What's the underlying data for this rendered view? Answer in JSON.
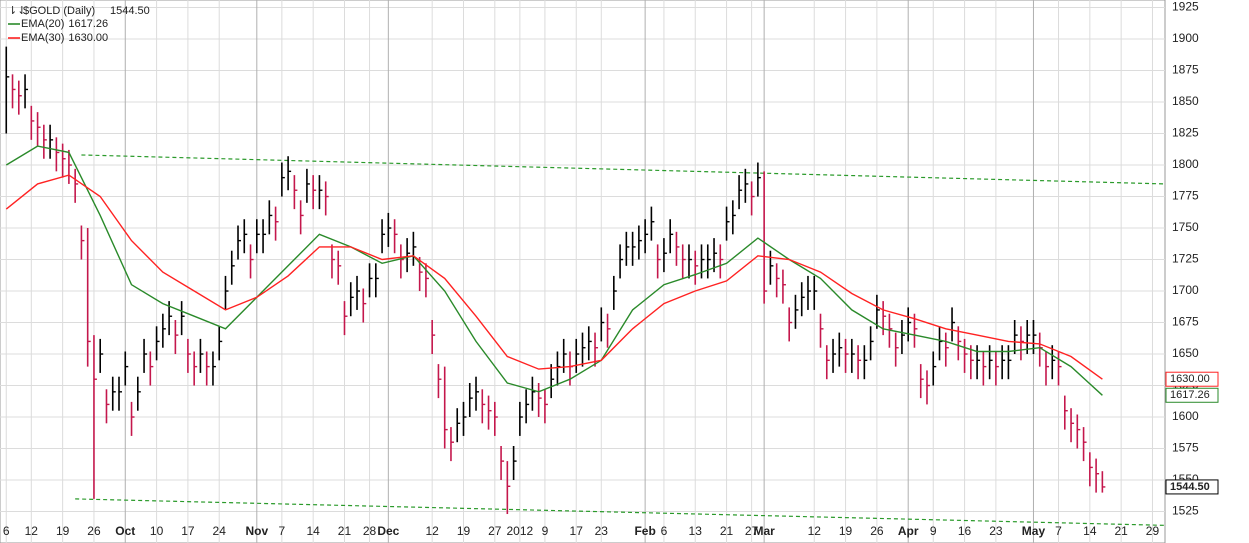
{
  "chart_data": {
    "type": "hlc",
    "title": "$GOLD (Daily)",
    "price_label": "1544.50",
    "up_color": "#000000",
    "down_color": "#c4174c",
    "xlim": [
      -1,
      185
    ],
    "xticks": [
      {
        "value": 0,
        "label": "6"
      },
      {
        "value": 4,
        "label": "12"
      },
      {
        "value": 9,
        "label": "19"
      },
      {
        "value": 14,
        "label": "26"
      },
      {
        "value": 19,
        "label": "Oct"
      },
      {
        "value": 24,
        "label": "10"
      },
      {
        "value": 29,
        "label": "17"
      },
      {
        "value": 34,
        "label": "24"
      },
      {
        "value": 40,
        "label": "Nov"
      },
      {
        "value": 44,
        "label": "7"
      },
      {
        "value": 49,
        "label": "14"
      },
      {
        "value": 54,
        "label": "21"
      },
      {
        "value": 58,
        "label": "28"
      },
      {
        "value": 61,
        "label": "Dec"
      },
      {
        "value": 68,
        "label": "12"
      },
      {
        "value": 73,
        "label": "19"
      },
      {
        "value": 78,
        "label": "27"
      },
      {
        "value": 82,
        "label": "2012"
      },
      {
        "value": 86,
        "label": "9"
      },
      {
        "value": 91,
        "label": "17"
      },
      {
        "value": 95,
        "label": "23"
      },
      {
        "value": 102,
        "label": "Feb"
      },
      {
        "value": 105,
        "label": "6"
      },
      {
        "value": 110,
        "label": "13"
      },
      {
        "value": 115,
        "label": "21"
      },
      {
        "value": 119,
        "label": "27"
      },
      {
        "value": 121,
        "label": "Mar"
      },
      {
        "value": 129,
        "label": "12"
      },
      {
        "value": 134,
        "label": "19"
      },
      {
        "value": 139,
        "label": "26"
      },
      {
        "value": 144,
        "label": "Apr"
      },
      {
        "value": 148,
        "label": "9"
      },
      {
        "value": 153,
        "label": "16"
      },
      {
        "value": 158,
        "label": "23"
      },
      {
        "value": 164,
        "label": "May"
      },
      {
        "value": 168,
        "label": "7"
      },
      {
        "value": 173,
        "label": "14"
      },
      {
        "value": 178,
        "label": "21"
      },
      {
        "value": 183,
        "label": "29"
      }
    ],
    "ylim": [
      1500,
      1931
    ],
    "yticks": [
      1525,
      1550,
      1575,
      1600,
      1625,
      1650,
      1675,
      1700,
      1725,
      1750,
      1775,
      1800,
      1825,
      1850,
      1875,
      1900,
      1925
    ],
    "grid": true,
    "high": [
      1894,
      1872,
      1867,
      1872,
      1847,
      1842,
      1832,
      1832,
      1822,
      1817,
      1812,
      1797,
      1752,
      1750,
      1665,
      1662,
      1622,
      1632,
      1632,
      1652,
      1612,
      1632,
      1662,
      1652,
      1672,
      1682,
      1692,
      1677,
      1692,
      1662,
      1652,
      1662,
      1652,
      1652,
      1672,
      1712,
      1732,
      1752,
      1757,
      1737,
      1757,
      1757,
      1772,
      1767,
      1802,
      1807,
      1792,
      1772,
      1797,
      1792,
      1792,
      1787,
      1737,
      1732,
      1692,
      1707,
      1712,
      1702,
      1722,
      1722,
      1757,
      1762,
      1757,
      1737,
      1742,
      1747,
      1727,
      1722,
      1677,
      1642,
      1640,
      1592,
      1607,
      1612,
      1627,
      1632,
      1622,
      1617,
      1612,
      1577,
      1565,
      1577,
      1612,
      1622,
      1632,
      1627,
      1622,
      1642,
      1652,
      1662,
      1652,
      1662,
      1667,
      1672,
      1667,
      1687,
      1682,
      1712,
      1737,
      1747,
      1747,
      1752,
      1757,
      1767,
      1737,
      1742,
      1757,
      1747,
      1737,
      1737,
      1732,
      1737,
      1737,
      1742,
      1737,
      1767,
      1772,
      1792,
      1797,
      1787,
      1802,
      1795,
      1732,
      1722,
      1717,
      1687,
      1697,
      1707,
      1712,
      1712,
      1682,
      1657,
      1662,
      1667,
      1662,
      1662,
      1657,
      1657,
      1672,
      1697,
      1692,
      1682,
      1667,
      1677,
      1687,
      1682,
      1642,
      1637,
      1652,
      1672,
      1667,
      1687,
      1672,
      1662,
      1657,
      1657,
      1652,
      1657,
      1652,
      1657,
      1657,
      1677,
      1672,
      1677,
      1677,
      1667,
      1652,
      1657,
      1652,
      1617,
      1607,
      1602,
      1592,
      1572,
      1567,
      1557
    ],
    "low": [
      1825,
      1845,
      1840,
      1845,
      1820,
      1815,
      1805,
      1805,
      1795,
      1790,
      1785,
      1770,
      1725,
      1640,
      1535,
      1635,
      1595,
      1605,
      1605,
      1625,
      1585,
      1605,
      1635,
      1625,
      1645,
      1655,
      1665,
      1650,
      1665,
      1635,
      1625,
      1635,
      1625,
      1625,
      1645,
      1685,
      1705,
      1725,
      1730,
      1710,
      1730,
      1730,
      1745,
      1740,
      1775,
      1780,
      1765,
      1745,
      1770,
      1765,
      1765,
      1760,
      1710,
      1705,
      1665,
      1680,
      1685,
      1675,
      1695,
      1695,
      1730,
      1735,
      1730,
      1710,
      1715,
      1720,
      1700,
      1695,
      1650,
      1615,
      1575,
      1565,
      1580,
      1585,
      1600,
      1605,
      1595,
      1590,
      1585,
      1550,
      1523,
      1550,
      1585,
      1595,
      1605,
      1600,
      1595,
      1615,
      1625,
      1635,
      1625,
      1635,
      1640,
      1645,
      1640,
      1660,
      1655,
      1685,
      1710,
      1720,
      1720,
      1725,
      1730,
      1740,
      1710,
      1715,
      1730,
      1720,
      1710,
      1710,
      1705,
      1710,
      1710,
      1715,
      1710,
      1740,
      1745,
      1765,
      1770,
      1760,
      1775,
      1690,
      1705,
      1695,
      1690,
      1660,
      1670,
      1680,
      1685,
      1685,
      1655,
      1630,
      1635,
      1640,
      1635,
      1635,
      1630,
      1630,
      1645,
      1670,
      1665,
      1655,
      1640,
      1650,
      1660,
      1655,
      1615,
      1610,
      1625,
      1645,
      1640,
      1660,
      1645,
      1635,
      1630,
      1630,
      1625,
      1630,
      1625,
      1630,
      1630,
      1650,
      1645,
      1650,
      1650,
      1640,
      1625,
      1630,
      1625,
      1590,
      1580,
      1575,
      1565,
      1545,
      1540,
      1540
    ],
    "close": [
      1870,
      1860,
      1855,
      1860,
      1835,
      1830,
      1820,
      1820,
      1810,
      1805,
      1800,
      1785,
      1740,
      1660,
      1630,
      1650,
      1610,
      1620,
      1620,
      1640,
      1600,
      1620,
      1650,
      1640,
      1660,
      1670,
      1680,
      1665,
      1680,
      1650,
      1640,
      1650,
      1640,
      1640,
      1660,
      1700,
      1720,
      1740,
      1745,
      1725,
      1745,
      1745,
      1760,
      1755,
      1790,
      1795,
      1780,
      1760,
      1785,
      1780,
      1780,
      1775,
      1725,
      1720,
      1680,
      1695,
      1700,
      1690,
      1710,
      1710,
      1745,
      1750,
      1745,
      1725,
      1730,
      1735,
      1715,
      1710,
      1665,
      1630,
      1590,
      1580,
      1595,
      1600,
      1615,
      1620,
      1610,
      1605,
      1600,
      1565,
      1545,
      1565,
      1600,
      1610,
      1620,
      1615,
      1610,
      1630,
      1640,
      1650,
      1640,
      1650,
      1655,
      1660,
      1655,
      1675,
      1670,
      1700,
      1725,
      1735,
      1735,
      1740,
      1745,
      1755,
      1725,
      1730,
      1745,
      1735,
      1725,
      1725,
      1720,
      1725,
      1725,
      1730,
      1725,
      1755,
      1760,
      1780,
      1785,
      1775,
      1790,
      1700,
      1720,
      1710,
      1705,
      1675,
      1685,
      1695,
      1700,
      1700,
      1670,
      1645,
      1650,
      1655,
      1650,
      1650,
      1645,
      1645,
      1660,
      1685,
      1680,
      1670,
      1655,
      1665,
      1675,
      1670,
      1630,
      1625,
      1640,
      1660,
      1655,
      1675,
      1660,
      1650,
      1645,
      1645,
      1640,
      1645,
      1640,
      1645,
      1645,
      1665,
      1660,
      1665,
      1665,
      1655,
      1640,
      1645,
      1640,
      1605,
      1595,
      1590,
      1580,
      1560,
      1555,
      1544.5
    ],
    "series": [
      {
        "name": "EMA(20)",
        "color": "#2a8a2a",
        "last_value_label": "1617.26",
        "x": [
          0,
          5,
          10,
          15,
          20,
          25,
          30,
          35,
          40,
          45,
          50,
          55,
          60,
          65,
          70,
          75,
          80,
          85,
          90,
          95,
          100,
          105,
          110,
          115,
          120,
          125,
          130,
          135,
          140,
          145,
          150,
          155,
          160,
          165,
          170,
          175
        ],
        "values": [
          1800,
          1815,
          1810,
          1760,
          1705,
          1690,
          1680,
          1670,
          1695,
          1720,
          1745,
          1735,
          1722,
          1728,
          1700,
          1660,
          1627,
          1620,
          1630,
          1645,
          1685,
          1705,
          1713,
          1722,
          1742,
          1725,
          1710,
          1685,
          1670,
          1665,
          1660,
          1652,
          1652,
          1655,
          1640,
          1617.26
        ]
      },
      {
        "name": "EMA(30)",
        "color": "#ff2222",
        "last_value_label": "1630.00",
        "x": [
          0,
          5,
          10,
          15,
          20,
          25,
          30,
          35,
          40,
          45,
          50,
          55,
          60,
          65,
          70,
          75,
          80,
          85,
          90,
          95,
          100,
          105,
          110,
          115,
          120,
          125,
          130,
          135,
          140,
          145,
          150,
          155,
          160,
          165,
          170,
          175
        ],
        "values": [
          1765,
          1785,
          1792,
          1775,
          1740,
          1715,
          1700,
          1685,
          1695,
          1712,
          1735,
          1735,
          1725,
          1728,
          1710,
          1680,
          1648,
          1638,
          1640,
          1645,
          1670,
          1690,
          1700,
          1708,
          1728,
          1725,
          1715,
          1698,
          1685,
          1678,
          1670,
          1665,
          1660,
          1658,
          1648,
          1630
        ]
      }
    ],
    "trendlines": [
      {
        "color": "#2a9a2a",
        "x": [
          12,
          185
        ],
        "y": [
          1808,
          1785
        ]
      },
      {
        "color": "#2a9a2a",
        "x": [
          11,
          185
        ],
        "y": [
          1535,
          1514
        ]
      }
    ]
  }
}
